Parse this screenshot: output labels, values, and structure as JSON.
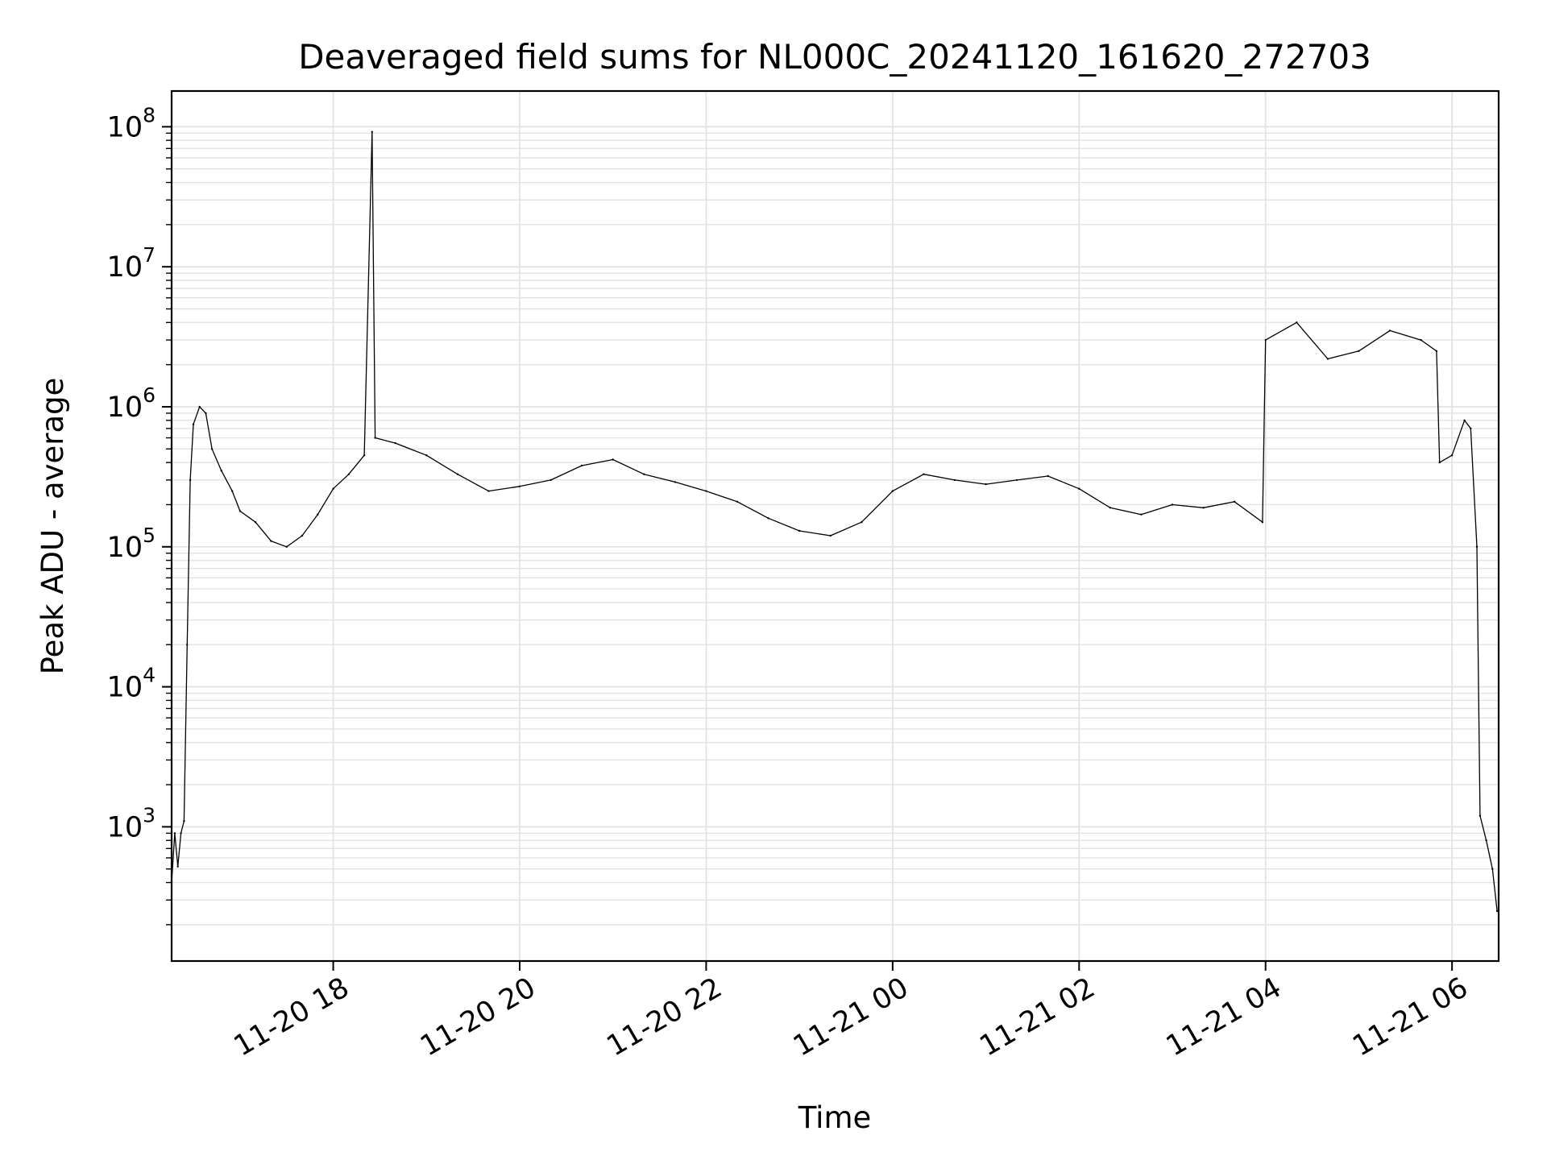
{
  "chart_data": {
    "type": "line",
    "title": "Deaveraged field sums for NL000C_20241120_161620_272703",
    "xlabel": "Time",
    "ylabel": "Peak ADU - average",
    "yscale": "log",
    "grid": true,
    "line_color": "#000000",
    "grid_color": "#e3e3e3",
    "xlim": [
      "2024-11-20 16:16",
      "2024-11-21 06:30"
    ],
    "ylim": [
      110,
      180000000
    ],
    "x_ticks": [
      {
        "t": "2024-11-20 18:00",
        "label": "11-20 18"
      },
      {
        "t": "2024-11-20 20:00",
        "label": "11-20 20"
      },
      {
        "t": "2024-11-20 22:00",
        "label": "11-20 22"
      },
      {
        "t": "2024-11-21 00:00",
        "label": "11-21 00"
      },
      {
        "t": "2024-11-21 02:00",
        "label": "11-21 02"
      },
      {
        "t": "2024-11-21 04:00",
        "label": "11-21 04"
      },
      {
        "t": "2024-11-21 06:00",
        "label": "11-21 06"
      }
    ],
    "y_ticks": [
      {
        "value": 1000,
        "base": "10",
        "exp": "3"
      },
      {
        "value": 10000,
        "base": "10",
        "exp": "4"
      },
      {
        "value": 100000,
        "base": "10",
        "exp": "5"
      },
      {
        "value": 1000000,
        "base": "10",
        "exp": "6"
      },
      {
        "value": 10000000,
        "base": "10",
        "exp": "7"
      },
      {
        "value": 100000000,
        "base": "10",
        "exp": "8"
      }
    ],
    "series": [
      {
        "points": [
          [
            "2024-11-20 16:16",
            400
          ],
          [
            "2024-11-20 16:18",
            900
          ],
          [
            "2024-11-20 16:20",
            520
          ],
          [
            "2024-11-20 16:22",
            900
          ],
          [
            "2024-11-20 16:24",
            1100
          ],
          [
            "2024-11-20 16:26",
            20000
          ],
          [
            "2024-11-20 16:28",
            300000
          ],
          [
            "2024-11-20 16:30",
            750000
          ],
          [
            "2024-11-20 16:34",
            1000000
          ],
          [
            "2024-11-20 16:38",
            900000
          ],
          [
            "2024-11-20 16:42",
            500000
          ],
          [
            "2024-11-20 16:48",
            350000
          ],
          [
            "2024-11-20 16:55",
            250000
          ],
          [
            "2024-11-20 17:00",
            180000
          ],
          [
            "2024-11-20 17:10",
            150000
          ],
          [
            "2024-11-20 17:20",
            110000
          ],
          [
            "2024-11-20 17:30",
            100000
          ],
          [
            "2024-11-20 17:40",
            120000
          ],
          [
            "2024-11-20 17:50",
            170000
          ],
          [
            "2024-11-20 18:00",
            260000
          ],
          [
            "2024-11-20 18:10",
            330000
          ],
          [
            "2024-11-20 18:20",
            450000
          ],
          [
            "2024-11-20 18:25",
            92000000
          ],
          [
            "2024-11-20 18:27",
            600000
          ],
          [
            "2024-11-20 18:40",
            550000
          ],
          [
            "2024-11-20 19:00",
            450000
          ],
          [
            "2024-11-20 19:20",
            330000
          ],
          [
            "2024-11-20 19:40",
            250000
          ],
          [
            "2024-11-20 20:00",
            270000
          ],
          [
            "2024-11-20 20:20",
            300000
          ],
          [
            "2024-11-20 20:40",
            380000
          ],
          [
            "2024-11-20 21:00",
            420000
          ],
          [
            "2024-11-20 21:20",
            330000
          ],
          [
            "2024-11-20 21:40",
            290000
          ],
          [
            "2024-11-20 22:00",
            250000
          ],
          [
            "2024-11-20 22:20",
            210000
          ],
          [
            "2024-11-20 22:40",
            160000
          ],
          [
            "2024-11-20 23:00",
            130000
          ],
          [
            "2024-11-20 23:20",
            120000
          ],
          [
            "2024-11-20 23:40",
            150000
          ],
          [
            "2024-11-21 00:00",
            250000
          ],
          [
            "2024-11-21 00:20",
            330000
          ],
          [
            "2024-11-21 00:40",
            300000
          ],
          [
            "2024-11-21 01:00",
            280000
          ],
          [
            "2024-11-21 01:20",
            300000
          ],
          [
            "2024-11-21 01:40",
            320000
          ],
          [
            "2024-11-21 02:00",
            260000
          ],
          [
            "2024-11-21 02:20",
            190000
          ],
          [
            "2024-11-21 02:40",
            170000
          ],
          [
            "2024-11-21 03:00",
            200000
          ],
          [
            "2024-11-21 03:20",
            190000
          ],
          [
            "2024-11-21 03:40",
            210000
          ],
          [
            "2024-11-21 03:58",
            150000
          ],
          [
            "2024-11-21 04:00",
            3000000
          ],
          [
            "2024-11-21 04:20",
            4000000
          ],
          [
            "2024-11-21 04:40",
            2200000
          ],
          [
            "2024-11-21 05:00",
            2500000
          ],
          [
            "2024-11-21 05:20",
            3500000
          ],
          [
            "2024-11-21 05:40",
            3000000
          ],
          [
            "2024-11-21 05:50",
            2500000
          ],
          [
            "2024-11-21 05:52",
            400000
          ],
          [
            "2024-11-21 06:00",
            450000
          ],
          [
            "2024-11-21 06:08",
            800000
          ],
          [
            "2024-11-21 06:12",
            700000
          ],
          [
            "2024-11-21 06:16",
            100000
          ],
          [
            "2024-11-21 06:18",
            1200
          ],
          [
            "2024-11-21 06:22",
            800
          ],
          [
            "2024-11-21 06:26",
            500
          ],
          [
            "2024-11-21 06:29",
            250
          ]
        ]
      }
    ]
  }
}
